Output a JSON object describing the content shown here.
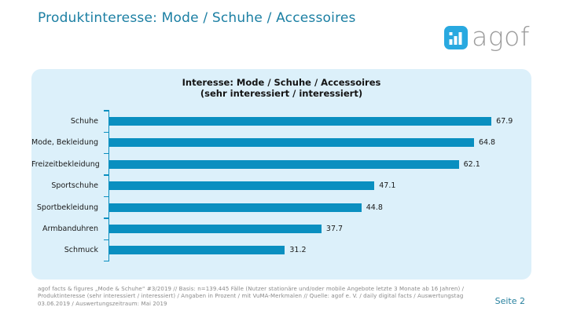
{
  "slide": {
    "title": "Produktinteresse: Mode / Schuhe / Accessoires",
    "page_label": "Seite 2"
  },
  "logo": {
    "text": "agof",
    "icon": "bar-chart-icon",
    "brand_color": "#29a9e0"
  },
  "chart_data": {
    "type": "bar",
    "orientation": "horizontal",
    "title": "Interesse: Mode / Schuhe / Accessoires",
    "subtitle": "(sehr interessiert / interessiert)",
    "categories": [
      "Schuhe",
      "Mode, Bekleidung",
      "Freizeitbekleidung",
      "Sportschuhe",
      "Sportbekleidung",
      "Armbanduhren",
      "Schmuck"
    ],
    "values": [
      67.9,
      64.8,
      62.1,
      47.1,
      44.8,
      37.7,
      31.2
    ],
    "unit": "Prozent",
    "xlim": [
      0,
      75
    ],
    "grid": false,
    "legend": false,
    "value_labels": true,
    "bar_color": "#0a8fc0",
    "panel_bg": "#dcf0fa"
  },
  "footer": {
    "lines": [
      "agof facts & figures „Mode & Schuhe“ #3/2019 // Basis: n=139.445 Fälle (Nutzer stationäre und/oder mobile Angebote letzte 3 Monate ab 16 Jahren) /",
      "Produktinteresse (sehr interessiert / interessiert) / Angaben in Prozent / mit VuMA-Merkmalen // Quelle: agof e. V. / daily digital facts / Auswertungstag",
      "03.06.2019 / Auswertungszeitraum: Mai 2019"
    ]
  },
  "colors": {
    "title_text": "#1b7fa3",
    "bar": "#0a8fc0",
    "panel_bg": "#dcf0fa",
    "footer_text": "#8a8a8a",
    "page_label": "#27809e"
  }
}
